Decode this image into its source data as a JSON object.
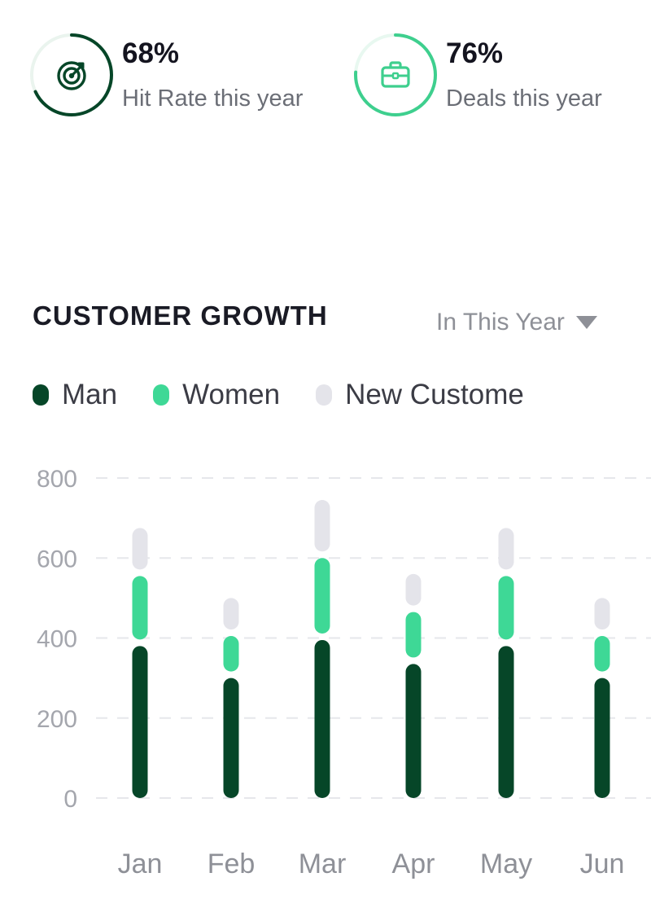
{
  "stats": [
    {
      "value": "68%",
      "label": "Hit Rate this year",
      "progress": 0.68,
      "color": "#064628",
      "icon": "target-icon"
    },
    {
      "value": "76%",
      "label": "Deals this year",
      "progress": 0.76,
      "color": "#3ecf8e",
      "icon": "briefcase-icon"
    }
  ],
  "section": {
    "title": "CUSTOMER GROWTH",
    "period": "In This Year"
  },
  "legend": [
    {
      "label": "Man",
      "color": "#064628"
    },
    {
      "label": "Women",
      "color": "#3ed896"
    },
    {
      "label": "New Custome",
      "color": "#e4e4ea"
    }
  ],
  "chart_data": {
    "type": "bar",
    "stacked": true,
    "categories": [
      "Jan",
      "Feb",
      "Mar",
      "Apr",
      "May",
      "Jun"
    ],
    "series": [
      {
        "name": "Man",
        "color": "#064628",
        "values": [
          380,
          300,
          395,
          335,
          380,
          300
        ]
      },
      {
        "name": "Women",
        "color": "#3ed896",
        "values": [
          175,
          105,
          205,
          130,
          175,
          105
        ]
      },
      {
        "name": "New Custome",
        "color": "#e4e4ea",
        "values": [
          120,
          95,
          145,
          95,
          120,
          95
        ]
      }
    ],
    "yticks": [
      "0",
      "200",
      "400",
      "600",
      "800"
    ],
    "ylim": [
      0,
      800
    ],
    "grid": true,
    "legend": "top-left"
  }
}
